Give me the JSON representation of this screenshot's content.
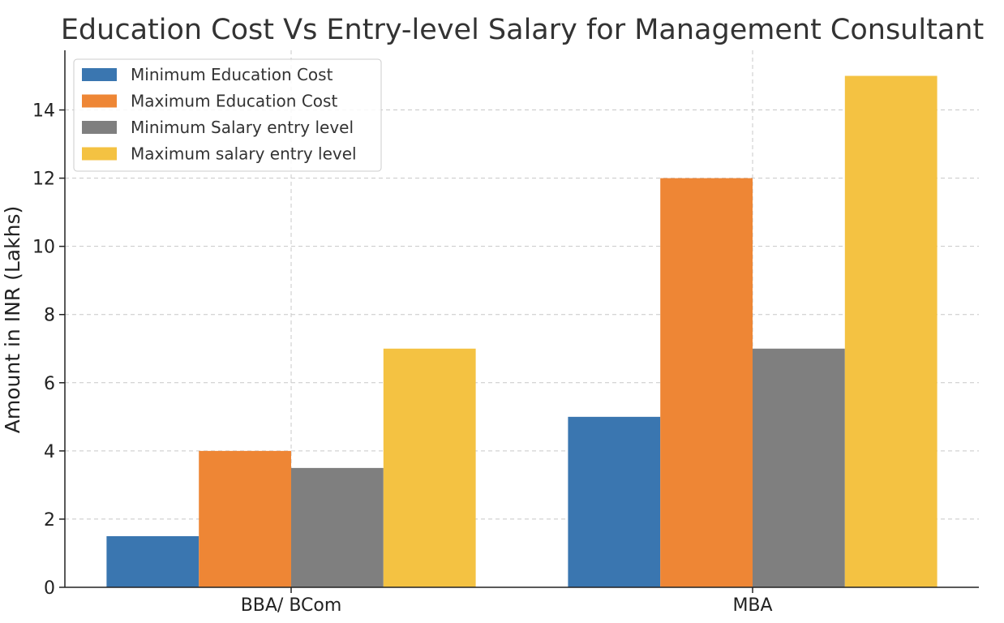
{
  "chart_data": {
    "type": "bar",
    "title": "Education Cost Vs Entry-level Salary for Management Consultant",
    "xlabel": "",
    "ylabel": "Amount in INR (Lakhs)",
    "categories": [
      "BBA/ BCom",
      "MBA"
    ],
    "series": [
      {
        "name": "Minimum Education Cost",
        "values": [
          1.5,
          5
        ],
        "color": "#3a76b0"
      },
      {
        "name": "Maximum Education Cost",
        "values": [
          4,
          12
        ],
        "color": "#ee8635"
      },
      {
        "name": "Minimum Salary entry level",
        "values": [
          3.5,
          7
        ],
        "color": "#7f7f7f"
      },
      {
        "name": "Maximum salary entry level",
        "values": [
          7,
          15
        ],
        "color": "#f4c242"
      }
    ],
    "ylim": [
      0,
      15.75
    ],
    "yticks": [
      0,
      2,
      4,
      6,
      8,
      10,
      12,
      14
    ],
    "grid": true,
    "legend_position": "top-left"
  }
}
